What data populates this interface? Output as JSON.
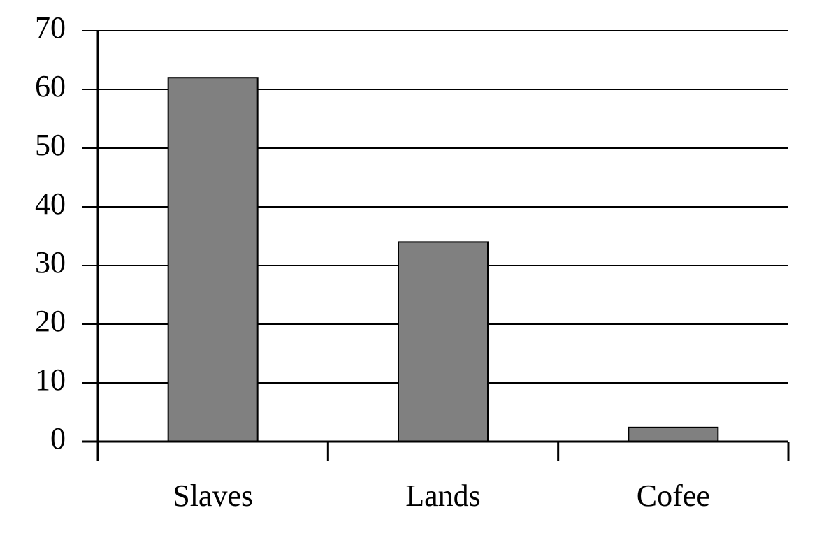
{
  "chart_data": {
    "type": "bar",
    "categories": [
      "Slaves",
      "Lands",
      "Cofee"
    ],
    "values": [
      62,
      34,
      2.4
    ],
    "color": "#808080",
    "ylim": [
      0,
      70
    ],
    "yticks": [
      0,
      10,
      20,
      30,
      40,
      50,
      60,
      70
    ],
    "grid": true
  }
}
